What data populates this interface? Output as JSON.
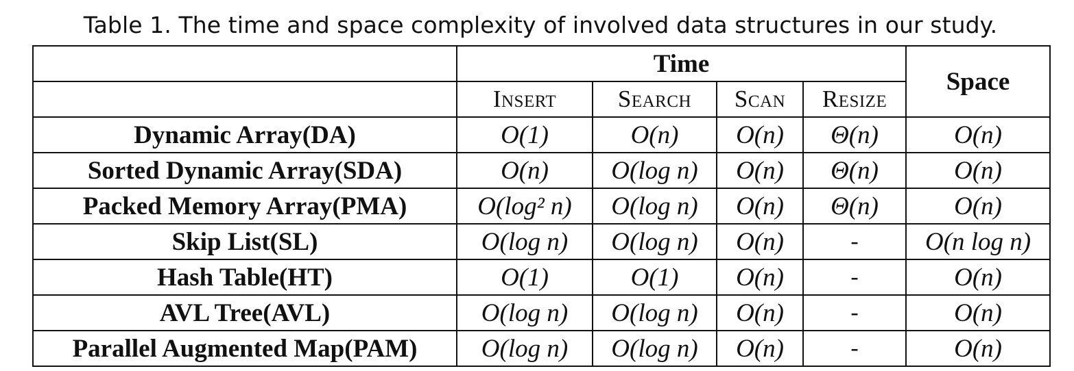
{
  "caption": "Table 1.  The time and space complexity of involved data structures in our study.",
  "table": {
    "group_headers": {
      "time": "Time",
      "space": "Space"
    },
    "operation_headers": [
      "Insert",
      "Search",
      "Scan",
      "Resize"
    ],
    "rows": [
      {
        "name": "Dynamic Array(DA)",
        "insert": "O(1)",
        "search": "O(n)",
        "scan": "O(n)",
        "resize": "Θ(n)",
        "space": "O(n)"
      },
      {
        "name": "Sorted Dynamic Array(SDA)",
        "insert": "O(n)",
        "search": "O(log n)",
        "scan": "O(n)",
        "resize": "Θ(n)",
        "space": "O(n)"
      },
      {
        "name": "Packed Memory Array(PMA)",
        "insert": "O(log² n)",
        "search": "O(log n)",
        "scan": "O(n)",
        "resize": "Θ(n)",
        "space": "O(n)"
      },
      {
        "name": "Skip List(SL)",
        "insert": "O(log n)",
        "search": "O(log n)",
        "scan": "O(n)",
        "resize": "-",
        "space": "O(n log n)"
      },
      {
        "name": "Hash Table(HT)",
        "insert": "O(1)",
        "search": "O(1)",
        "scan": "O(n)",
        "resize": "-",
        "space": "O(n)"
      },
      {
        "name": "AVL Tree(AVL)",
        "insert": "O(log n)",
        "search": "O(log n)",
        "scan": "O(n)",
        "resize": "-",
        "space": "O(n)"
      },
      {
        "name": "Parallel Augmented Map(PAM)",
        "insert": "O(log n)",
        "search": "O(log n)",
        "scan": "O(n)",
        "resize": "-",
        "space": "O(n)"
      }
    ]
  }
}
